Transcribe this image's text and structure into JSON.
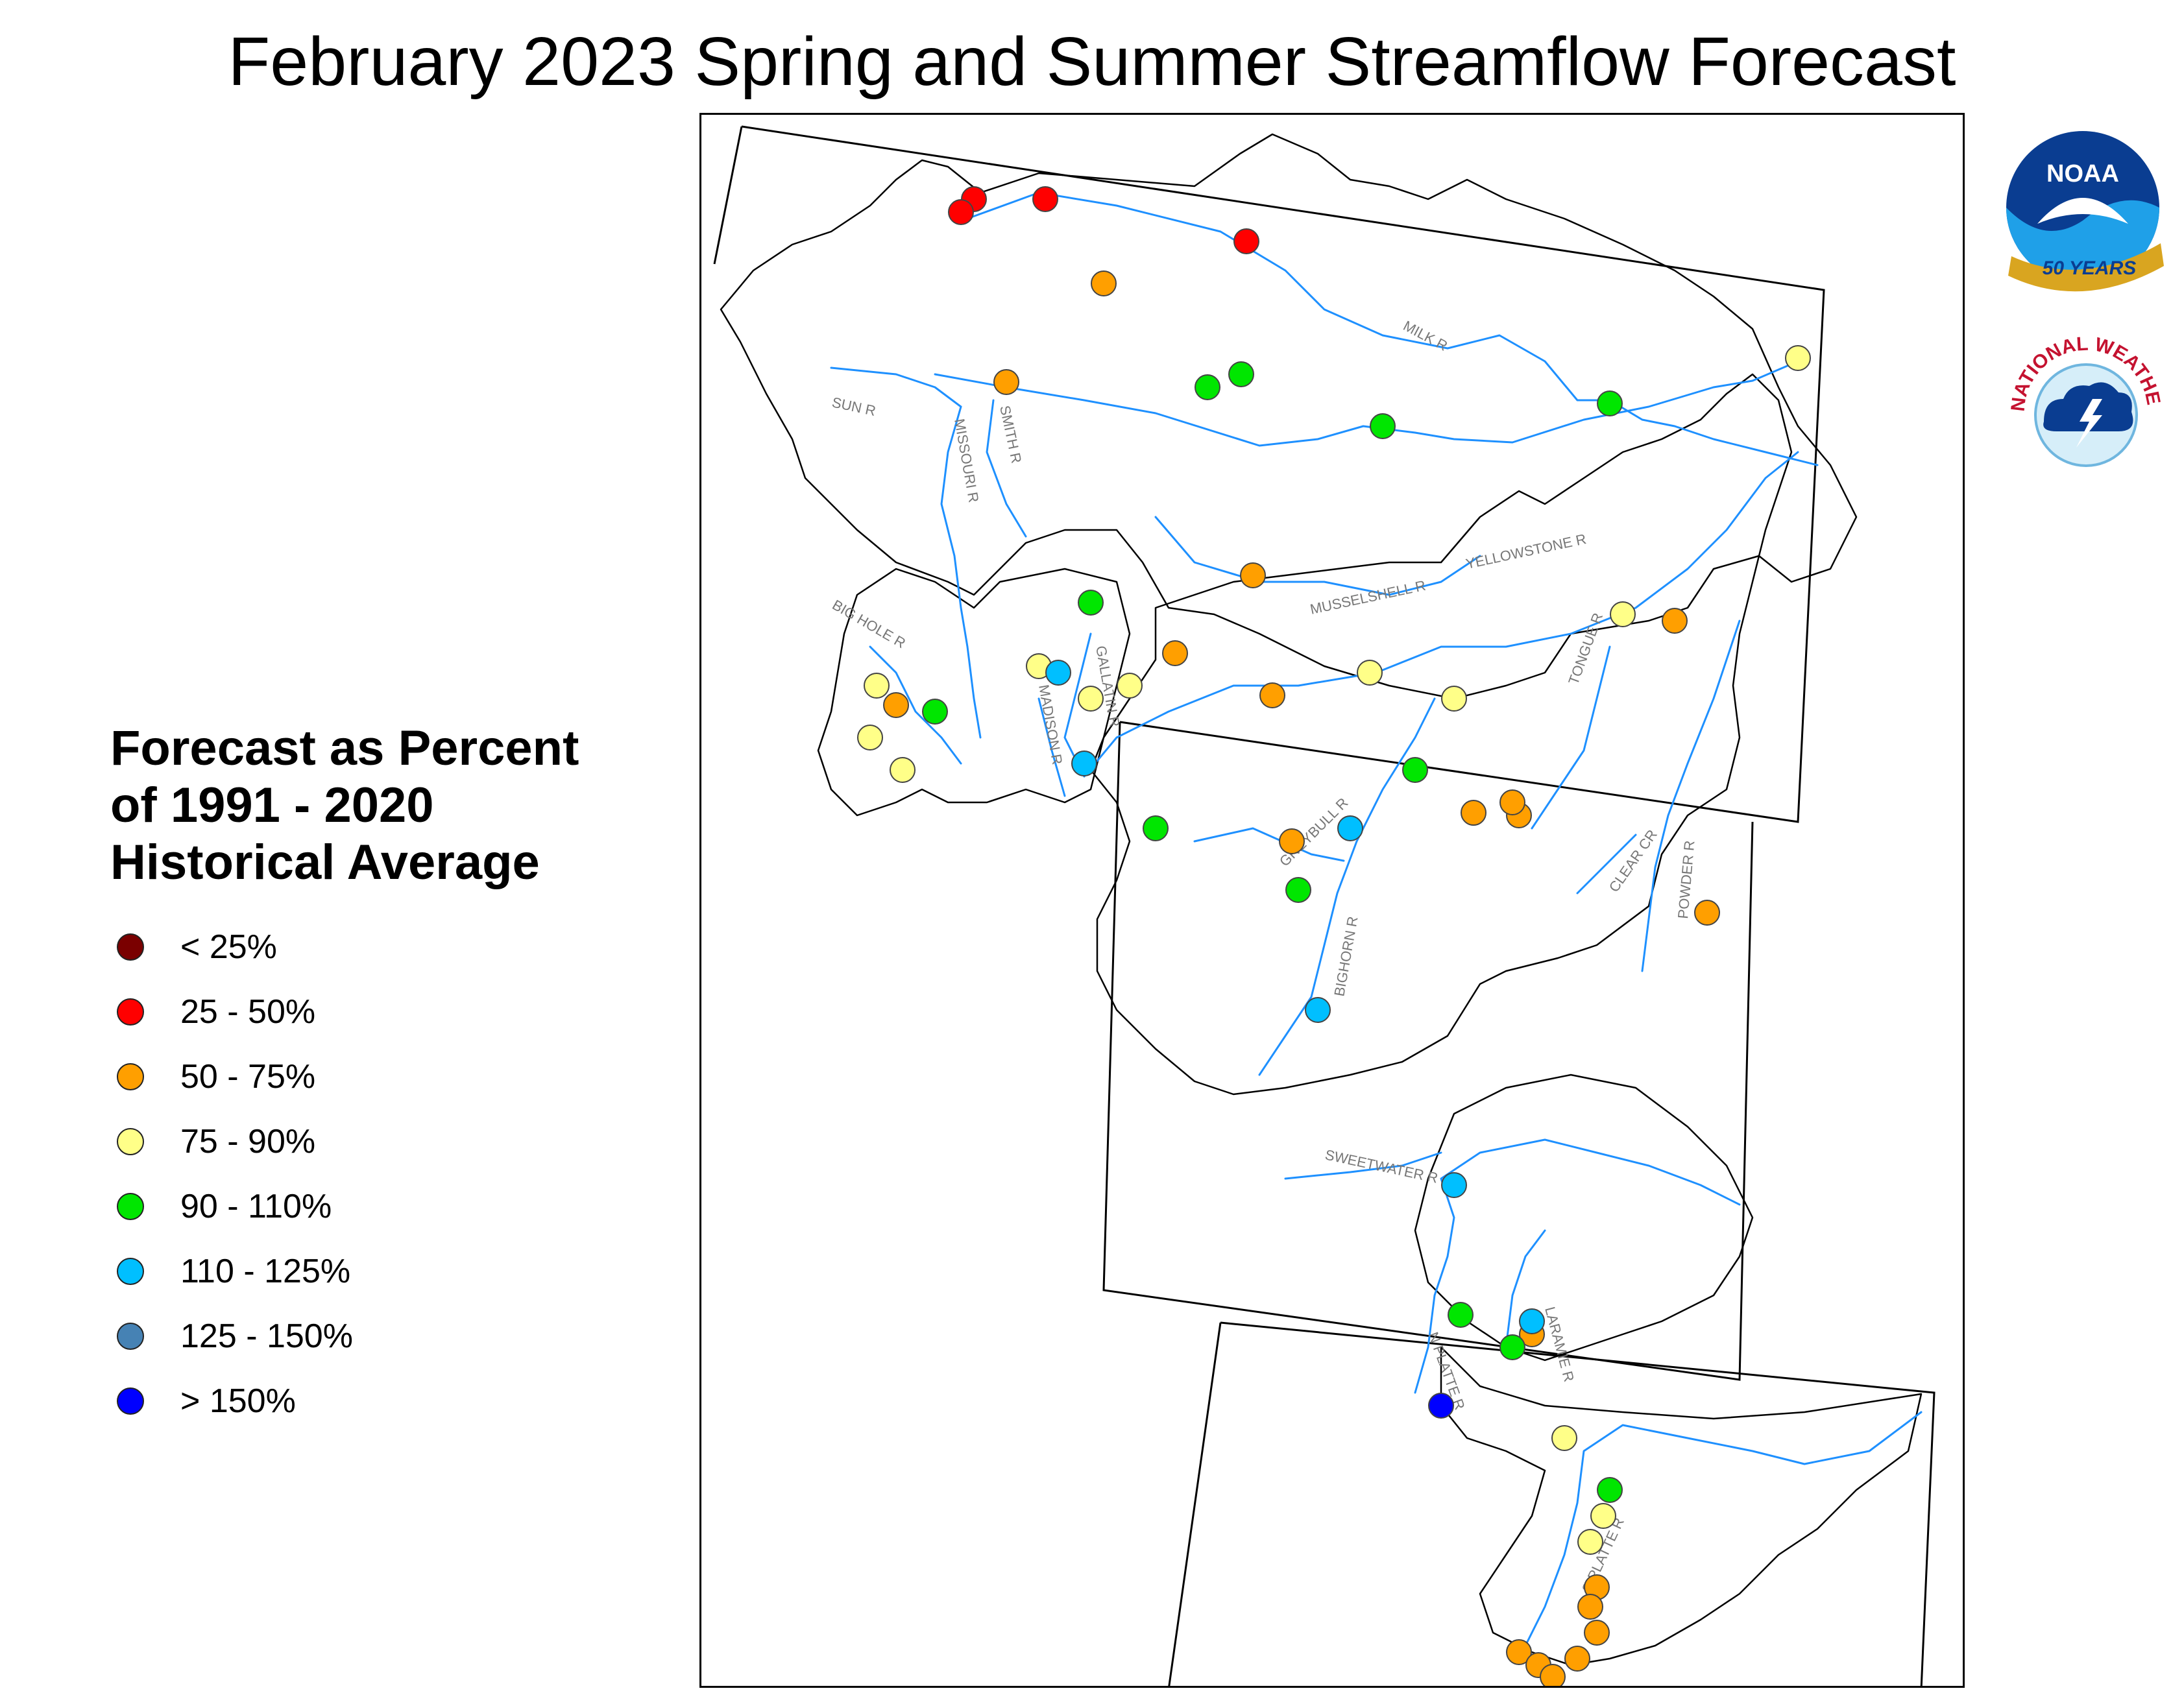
{
  "title": "February 2023 Spring and Summer Streamflow Forecast",
  "legend": {
    "title_lines": [
      "Forecast as Percent",
      "of 1991 - 2020",
      "Historical Average"
    ],
    "items": [
      {
        "label": "< 25%",
        "color": "#7a0000"
      },
      {
        "label": "25 - 50%",
        "color": "#ff0000"
      },
      {
        "label": "50 - 75%",
        "color": "#ff9f00"
      },
      {
        "label": "75 - 90%",
        "color": "#ffff88"
      },
      {
        "label": "90 - 110%",
        "color": "#00e600"
      },
      {
        "label": "110 - 125%",
        "color": "#00bfff"
      },
      {
        "label": "125 - 150%",
        "color": "#4682b4"
      },
      {
        "label": "> 150%",
        "color": "#0000ff"
      }
    ]
  },
  "logos": {
    "noaa": {
      "text": "NOAA",
      "years_text": "50 YEARS"
    },
    "nws": {
      "text": "NATIONAL WEATHER SERVICE"
    }
  },
  "river_labels": [
    {
      "text": "MILK R"
    },
    {
      "text": "SUN R"
    },
    {
      "text": "MISSOURI R"
    },
    {
      "text": "SMITH R"
    },
    {
      "text": "MUSSELSHELL R"
    },
    {
      "text": "BIG HOLE R"
    },
    {
      "text": "GALLATIN R"
    },
    {
      "text": "MADISON R"
    },
    {
      "text": "YELLOWSTONE R"
    },
    {
      "text": "TONGUE R"
    },
    {
      "text": "CLEAR CR"
    },
    {
      "text": "POWDER R"
    },
    {
      "text": "GREYBULL R"
    },
    {
      "text": "BIGHORN R"
    },
    {
      "text": "SWEETWATER R"
    },
    {
      "text": "N PLATTE R"
    },
    {
      "text": "LARAMIE R"
    },
    {
      "text": "S PLATTE R"
    }
  ],
  "forecast_points": [
    {
      "category": "25 - 50%"
    },
    {
      "category": "25 - 50%"
    },
    {
      "category": "25 - 50%"
    },
    {
      "category": "25 - 50%"
    },
    {
      "category": "50 - 75%"
    },
    {
      "category": "50 - 75%"
    },
    {
      "category": "50 - 75%"
    },
    {
      "category": "50 - 75%"
    },
    {
      "category": "50 - 75%"
    },
    {
      "category": "50 - 75%"
    },
    {
      "category": "50 - 75%"
    },
    {
      "category": "50 - 75%"
    },
    {
      "category": "50 - 75%"
    },
    {
      "category": "50 - 75%"
    },
    {
      "category": "50 - 75%"
    },
    {
      "category": "50 - 75%"
    },
    {
      "category": "50 - 75%"
    },
    {
      "category": "50 - 75%"
    },
    {
      "category": "50 - 75%"
    },
    {
      "category": "50 - 75%"
    },
    {
      "category": "50 - 75%"
    },
    {
      "category": "50 - 75%"
    },
    {
      "category": "50 - 75%"
    },
    {
      "category": "50 - 75%"
    },
    {
      "category": "75 - 90%"
    },
    {
      "category": "75 - 90%"
    },
    {
      "category": "75 - 90%"
    },
    {
      "category": "75 - 90%"
    },
    {
      "category": "75 - 90%"
    },
    {
      "category": "75 - 90%"
    },
    {
      "category": "75 - 90%"
    },
    {
      "category": "75 - 90%"
    },
    {
      "category": "75 - 90%"
    },
    {
      "category": "75 - 90%"
    },
    {
      "category": "75 - 90%"
    },
    {
      "category": "75 - 90%"
    },
    {
      "category": "75 - 90%"
    },
    {
      "category": "90 - 110%"
    },
    {
      "category": "90 - 110%"
    },
    {
      "category": "90 - 110%"
    },
    {
      "category": "90 - 110%"
    },
    {
      "category": "90 - 110%"
    },
    {
      "category": "90 - 110%"
    },
    {
      "category": "90 - 110%"
    },
    {
      "category": "90 - 110%"
    },
    {
      "category": "90 - 110%"
    },
    {
      "category": "90 - 110%"
    },
    {
      "category": "90 - 110%"
    },
    {
      "category": "90 - 110%"
    },
    {
      "category": "110 - 125%"
    },
    {
      "category": "110 - 125%"
    },
    {
      "category": "110 - 125%"
    },
    {
      "category": "110 - 125%"
    },
    {
      "category": "110 - 125%"
    },
    {
      "category": "110 - 125%"
    },
    {
      "category": "> 150%"
    }
  ]
}
